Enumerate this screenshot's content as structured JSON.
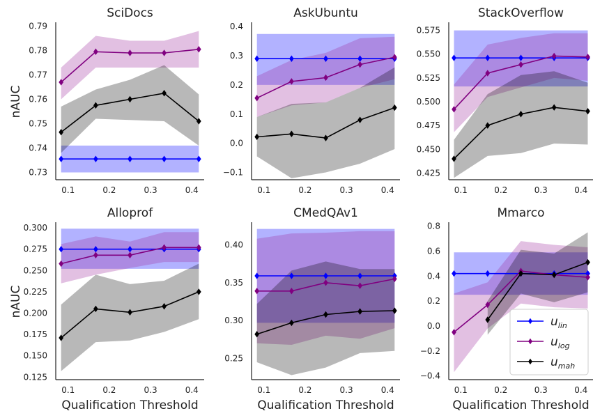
{
  "colors": {
    "lin": "#0000ff",
    "log": "#800080",
    "mah": "#000000"
  },
  "chart_data": [
    {
      "type": "line",
      "title": "SciDocs",
      "ylabel": "nAUC",
      "xlabel": "",
      "xlim": [
        0.07,
        0.43
      ],
      "ylim": [
        0.727,
        0.791
      ],
      "xticks": [
        0.1,
        0.2,
        0.3,
        0.4
      ],
      "xtick_labels": [
        "0.1",
        "0.2",
        "0.3",
        "0.4"
      ],
      "yticks": [
        0.73,
        0.74,
        0.75,
        0.76,
        0.77,
        0.78,
        0.79
      ],
      "ytick_labels": [
        "0.73",
        "0.74",
        "0.75",
        "0.76",
        "0.77",
        "0.78",
        "0.79"
      ],
      "series": [
        {
          "key": "lin",
          "x": [
            0.083,
            0.167,
            0.25,
            0.333,
            0.417
          ],
          "y": [
            0.7355,
            0.7355,
            0.7355,
            0.7355,
            0.7355
          ],
          "lower": [
            0.73,
            0.73,
            0.73,
            0.73,
            0.73
          ],
          "upper": [
            0.741,
            0.741,
            0.741,
            0.741,
            0.741
          ]
        },
        {
          "key": "log",
          "x": [
            0.083,
            0.167,
            0.25,
            0.333,
            0.417
          ],
          "y": [
            0.767,
            0.7795,
            0.779,
            0.779,
            0.7805
          ],
          "lower": [
            0.76,
            0.773,
            0.773,
            0.773,
            0.773
          ],
          "upper": [
            0.773,
            0.786,
            0.784,
            0.784,
            0.788
          ]
        },
        {
          "key": "mah",
          "x": [
            0.083,
            0.167,
            0.25,
            0.333,
            0.417
          ],
          "y": [
            0.7465,
            0.7575,
            0.76,
            0.7625,
            0.751
          ],
          "lower": [
            0.738,
            0.752,
            0.7515,
            0.751,
            0.741
          ],
          "upper": [
            0.757,
            0.764,
            0.768,
            0.774,
            0.762
          ]
        }
      ]
    },
    {
      "type": "line",
      "title": "AskUbuntu",
      "ylabel": "",
      "xlabel": "",
      "xlim": [
        0.07,
        0.43
      ],
      "ylim": [
        -0.125,
        0.41
      ],
      "xticks": [
        0.1,
        0.2,
        0.3,
        0.4
      ],
      "xtick_labels": [
        "0.1",
        "0.2",
        "0.3",
        "0.4"
      ],
      "yticks": [
        -0.1,
        0.0,
        0.1,
        0.2,
        0.3,
        0.4
      ],
      "ytick_labels": [
        "−0.1",
        "0.0",
        "0.1",
        "0.2",
        "0.3",
        "0.4"
      ],
      "series": [
        {
          "key": "lin",
          "x": [
            0.083,
            0.167,
            0.25,
            0.333,
            0.417
          ],
          "y": [
            0.29,
            0.29,
            0.29,
            0.29,
            0.29
          ],
          "lower": [
            0.2,
            0.2,
            0.2,
            0.2,
            0.2
          ],
          "upper": [
            0.375,
            0.375,
            0.375,
            0.375,
            0.375
          ]
        },
        {
          "key": "log",
          "x": [
            0.083,
            0.167,
            0.25,
            0.333,
            0.417
          ],
          "y": [
            0.155,
            0.212,
            0.225,
            0.27,
            0.295
          ],
          "lower": [
            0.09,
            0.13,
            0.14,
            0.19,
            0.22
          ],
          "upper": [
            0.23,
            0.285,
            0.31,
            0.36,
            0.365
          ]
        },
        {
          "key": "mah",
          "x": [
            0.083,
            0.167,
            0.25,
            0.333,
            0.417
          ],
          "y": [
            0.022,
            0.032,
            0.018,
            0.08,
            0.122
          ],
          "lower": [
            -0.045,
            -0.12,
            -0.1,
            -0.07,
            -0.02
          ],
          "upper": [
            0.09,
            0.135,
            0.14,
            0.19,
            0.26
          ]
        }
      ]
    },
    {
      "type": "line",
      "title": "StackOverflow",
      "ylabel": "",
      "xlabel": "",
      "xlim": [
        0.07,
        0.43
      ],
      "ylim": [
        0.418,
        0.582
      ],
      "xticks": [
        0.1,
        0.2,
        0.3,
        0.4
      ],
      "xtick_labels": [
        "0.1",
        "0.2",
        "0.3",
        "0.4"
      ],
      "yticks": [
        0.425,
        0.45,
        0.475,
        0.5,
        0.525,
        0.55,
        0.575
      ],
      "ytick_labels": [
        "0.425",
        "0.450",
        "0.475",
        "0.500",
        "0.525",
        "0.550",
        "0.575"
      ],
      "series": [
        {
          "key": "lin",
          "x": [
            0.083,
            0.167,
            0.25,
            0.333,
            0.417
          ],
          "y": [
            0.546,
            0.546,
            0.546,
            0.546,
            0.546
          ],
          "lower": [
            0.516,
            0.516,
            0.516,
            0.516,
            0.516
          ],
          "upper": [
            0.575,
            0.575,
            0.575,
            0.575,
            0.575
          ]
        },
        {
          "key": "log",
          "x": [
            0.083,
            0.167,
            0.25,
            0.333,
            0.417
          ],
          "y": [
            0.492,
            0.53,
            0.539,
            0.548,
            0.547
          ],
          "lower": [
            0.468,
            0.505,
            0.515,
            0.525,
            0.522
          ],
          "upper": [
            0.518,
            0.56,
            0.567,
            0.572,
            0.572
          ]
        },
        {
          "key": "mah",
          "x": [
            0.083,
            0.167,
            0.25,
            0.333,
            0.417
          ],
          "y": [
            0.44,
            0.475,
            0.487,
            0.494,
            0.49
          ],
          "lower": [
            0.42,
            0.443,
            0.446,
            0.456,
            0.455
          ],
          "upper": [
            0.46,
            0.508,
            0.528,
            0.532,
            0.52
          ]
        }
      ]
    },
    {
      "type": "line",
      "title": "Alloprof",
      "ylabel": "nAUC",
      "xlabel": "Qualification Threshold",
      "xlim": [
        0.07,
        0.43
      ],
      "ylim": [
        0.122,
        0.305
      ],
      "xticks": [
        0.1,
        0.2,
        0.3,
        0.4
      ],
      "xtick_labels": [
        "0.1",
        "0.2",
        "0.3",
        "0.4"
      ],
      "yticks": [
        0.125,
        0.15,
        0.175,
        0.2,
        0.225,
        0.25,
        0.275,
        0.3
      ],
      "ytick_labels": [
        "0.125",
        "0.150",
        "0.175",
        "0.200",
        "0.225",
        "0.250",
        "0.275",
        "0.300"
      ],
      "series": [
        {
          "key": "lin",
          "x": [
            0.083,
            0.167,
            0.25,
            0.333,
            0.417
          ],
          "y": [
            0.275,
            0.275,
            0.275,
            0.275,
            0.275
          ],
          "lower": [
            0.252,
            0.252,
            0.252,
            0.252,
            0.252
          ],
          "upper": [
            0.299,
            0.299,
            0.299,
            0.299,
            0.299
          ]
        },
        {
          "key": "log",
          "x": [
            0.083,
            0.167,
            0.25,
            0.333,
            0.417
          ],
          "y": [
            0.258,
            0.268,
            0.268,
            0.277,
            0.277
          ],
          "lower": [
            0.235,
            0.245,
            0.253,
            0.26,
            0.26
          ],
          "upper": [
            0.281,
            0.29,
            0.284,
            0.295,
            0.295
          ]
        },
        {
          "key": "mah",
          "x": [
            0.083,
            0.167,
            0.25,
            0.333,
            0.417
          ],
          "y": [
            0.171,
            0.205,
            0.201,
            0.208,
            0.225
          ],
          "lower": [
            0.132,
            0.166,
            0.168,
            0.178,
            0.193
          ],
          "upper": [
            0.21,
            0.245,
            0.234,
            0.238,
            0.258
          ]
        }
      ]
    },
    {
      "type": "line",
      "title": "CMedQAv1",
      "ylabel": "",
      "xlabel": "Qualification Threshold",
      "xlim": [
        0.07,
        0.43
      ],
      "ylim": [
        0.222,
        0.428
      ],
      "xticks": [
        0.1,
        0.2,
        0.3,
        0.4
      ],
      "xtick_labels": [
        "0.1",
        "0.2",
        "0.3",
        "0.4"
      ],
      "yticks": [
        0.25,
        0.3,
        0.35,
        0.4
      ],
      "ytick_labels": [
        "0.25",
        "0.30",
        "0.35",
        "0.40"
      ],
      "series": [
        {
          "key": "lin",
          "x": [
            0.083,
            0.167,
            0.25,
            0.333,
            0.417
          ],
          "y": [
            0.359,
            0.359,
            0.359,
            0.359,
            0.359
          ],
          "lower": [
            0.297,
            0.297,
            0.297,
            0.297,
            0.297
          ],
          "upper": [
            0.421,
            0.421,
            0.421,
            0.421,
            0.421
          ]
        },
        {
          "key": "log",
          "x": [
            0.083,
            0.167,
            0.25,
            0.333,
            0.417
          ],
          "y": [
            0.339,
            0.339,
            0.35,
            0.346,
            0.355
          ],
          "lower": [
            0.27,
            0.268,
            0.28,
            0.276,
            0.29
          ],
          "upper": [
            0.408,
            0.415,
            0.416,
            0.418,
            0.418
          ]
        },
        {
          "key": "mah",
          "x": [
            0.083,
            0.167,
            0.25,
            0.333,
            0.417
          ],
          "y": [
            0.282,
            0.297,
            0.308,
            0.312,
            0.313
          ],
          "lower": [
            0.245,
            0.228,
            0.238,
            0.257,
            0.26
          ],
          "upper": [
            0.322,
            0.366,
            0.378,
            0.368,
            0.368
          ]
        }
      ]
    },
    {
      "type": "line",
      "title": "Mmarco",
      "ylabel": "",
      "xlabel": "Qualification Threshold",
      "xlim": [
        0.07,
        0.43
      ],
      "ylim": [
        -0.43,
        0.82
      ],
      "xticks": [
        0.1,
        0.2,
        0.3,
        0.4
      ],
      "xtick_labels": [
        "0.1",
        "0.2",
        "0.3",
        "0.4"
      ],
      "yticks": [
        -0.4,
        -0.2,
        0.0,
        0.2,
        0.4,
        0.6,
        0.8
      ],
      "ytick_labels": [
        "−0.4",
        "−0.2",
        "0.0",
        "0.2",
        "0.4",
        "0.6",
        "0.8"
      ],
      "legend": {
        "placement": "bottom-right"
      },
      "series": [
        {
          "key": "lin",
          "x": [
            0.083,
            0.167,
            0.25,
            0.333,
            0.417
          ],
          "y": [
            0.42,
            0.42,
            0.42,
            0.42,
            0.42
          ],
          "lower": [
            0.25,
            0.25,
            0.25,
            0.25,
            0.25
          ],
          "upper": [
            0.59,
            0.59,
            0.59,
            0.59,
            0.59
          ]
        },
        {
          "key": "log",
          "x": [
            0.083,
            0.167,
            0.25,
            0.333,
            0.417
          ],
          "y": [
            -0.05,
            0.17,
            0.44,
            0.41,
            0.39
          ],
          "lower": [
            -0.37,
            -0.02,
            0.18,
            0.15,
            0.14
          ],
          "upper": [
            0.26,
            0.35,
            0.68,
            0.65,
            0.63
          ]
        },
        {
          "key": "mah",
          "x": [
            0.167,
            0.25,
            0.333,
            0.417
          ],
          "y": [
            0.05,
            0.42,
            0.41,
            0.51
          ],
          "lower": [
            -0.07,
            0.26,
            0.19,
            0.27
          ],
          "upper": [
            0.2,
            0.61,
            0.58,
            0.75
          ]
        }
      ]
    }
  ],
  "legend": {
    "entries": [
      {
        "key": "lin",
        "base": "u",
        "sub": "lin"
      },
      {
        "key": "log",
        "base": "u",
        "sub": "log"
      },
      {
        "key": "mah",
        "base": "u",
        "sub": "mah"
      }
    ]
  }
}
